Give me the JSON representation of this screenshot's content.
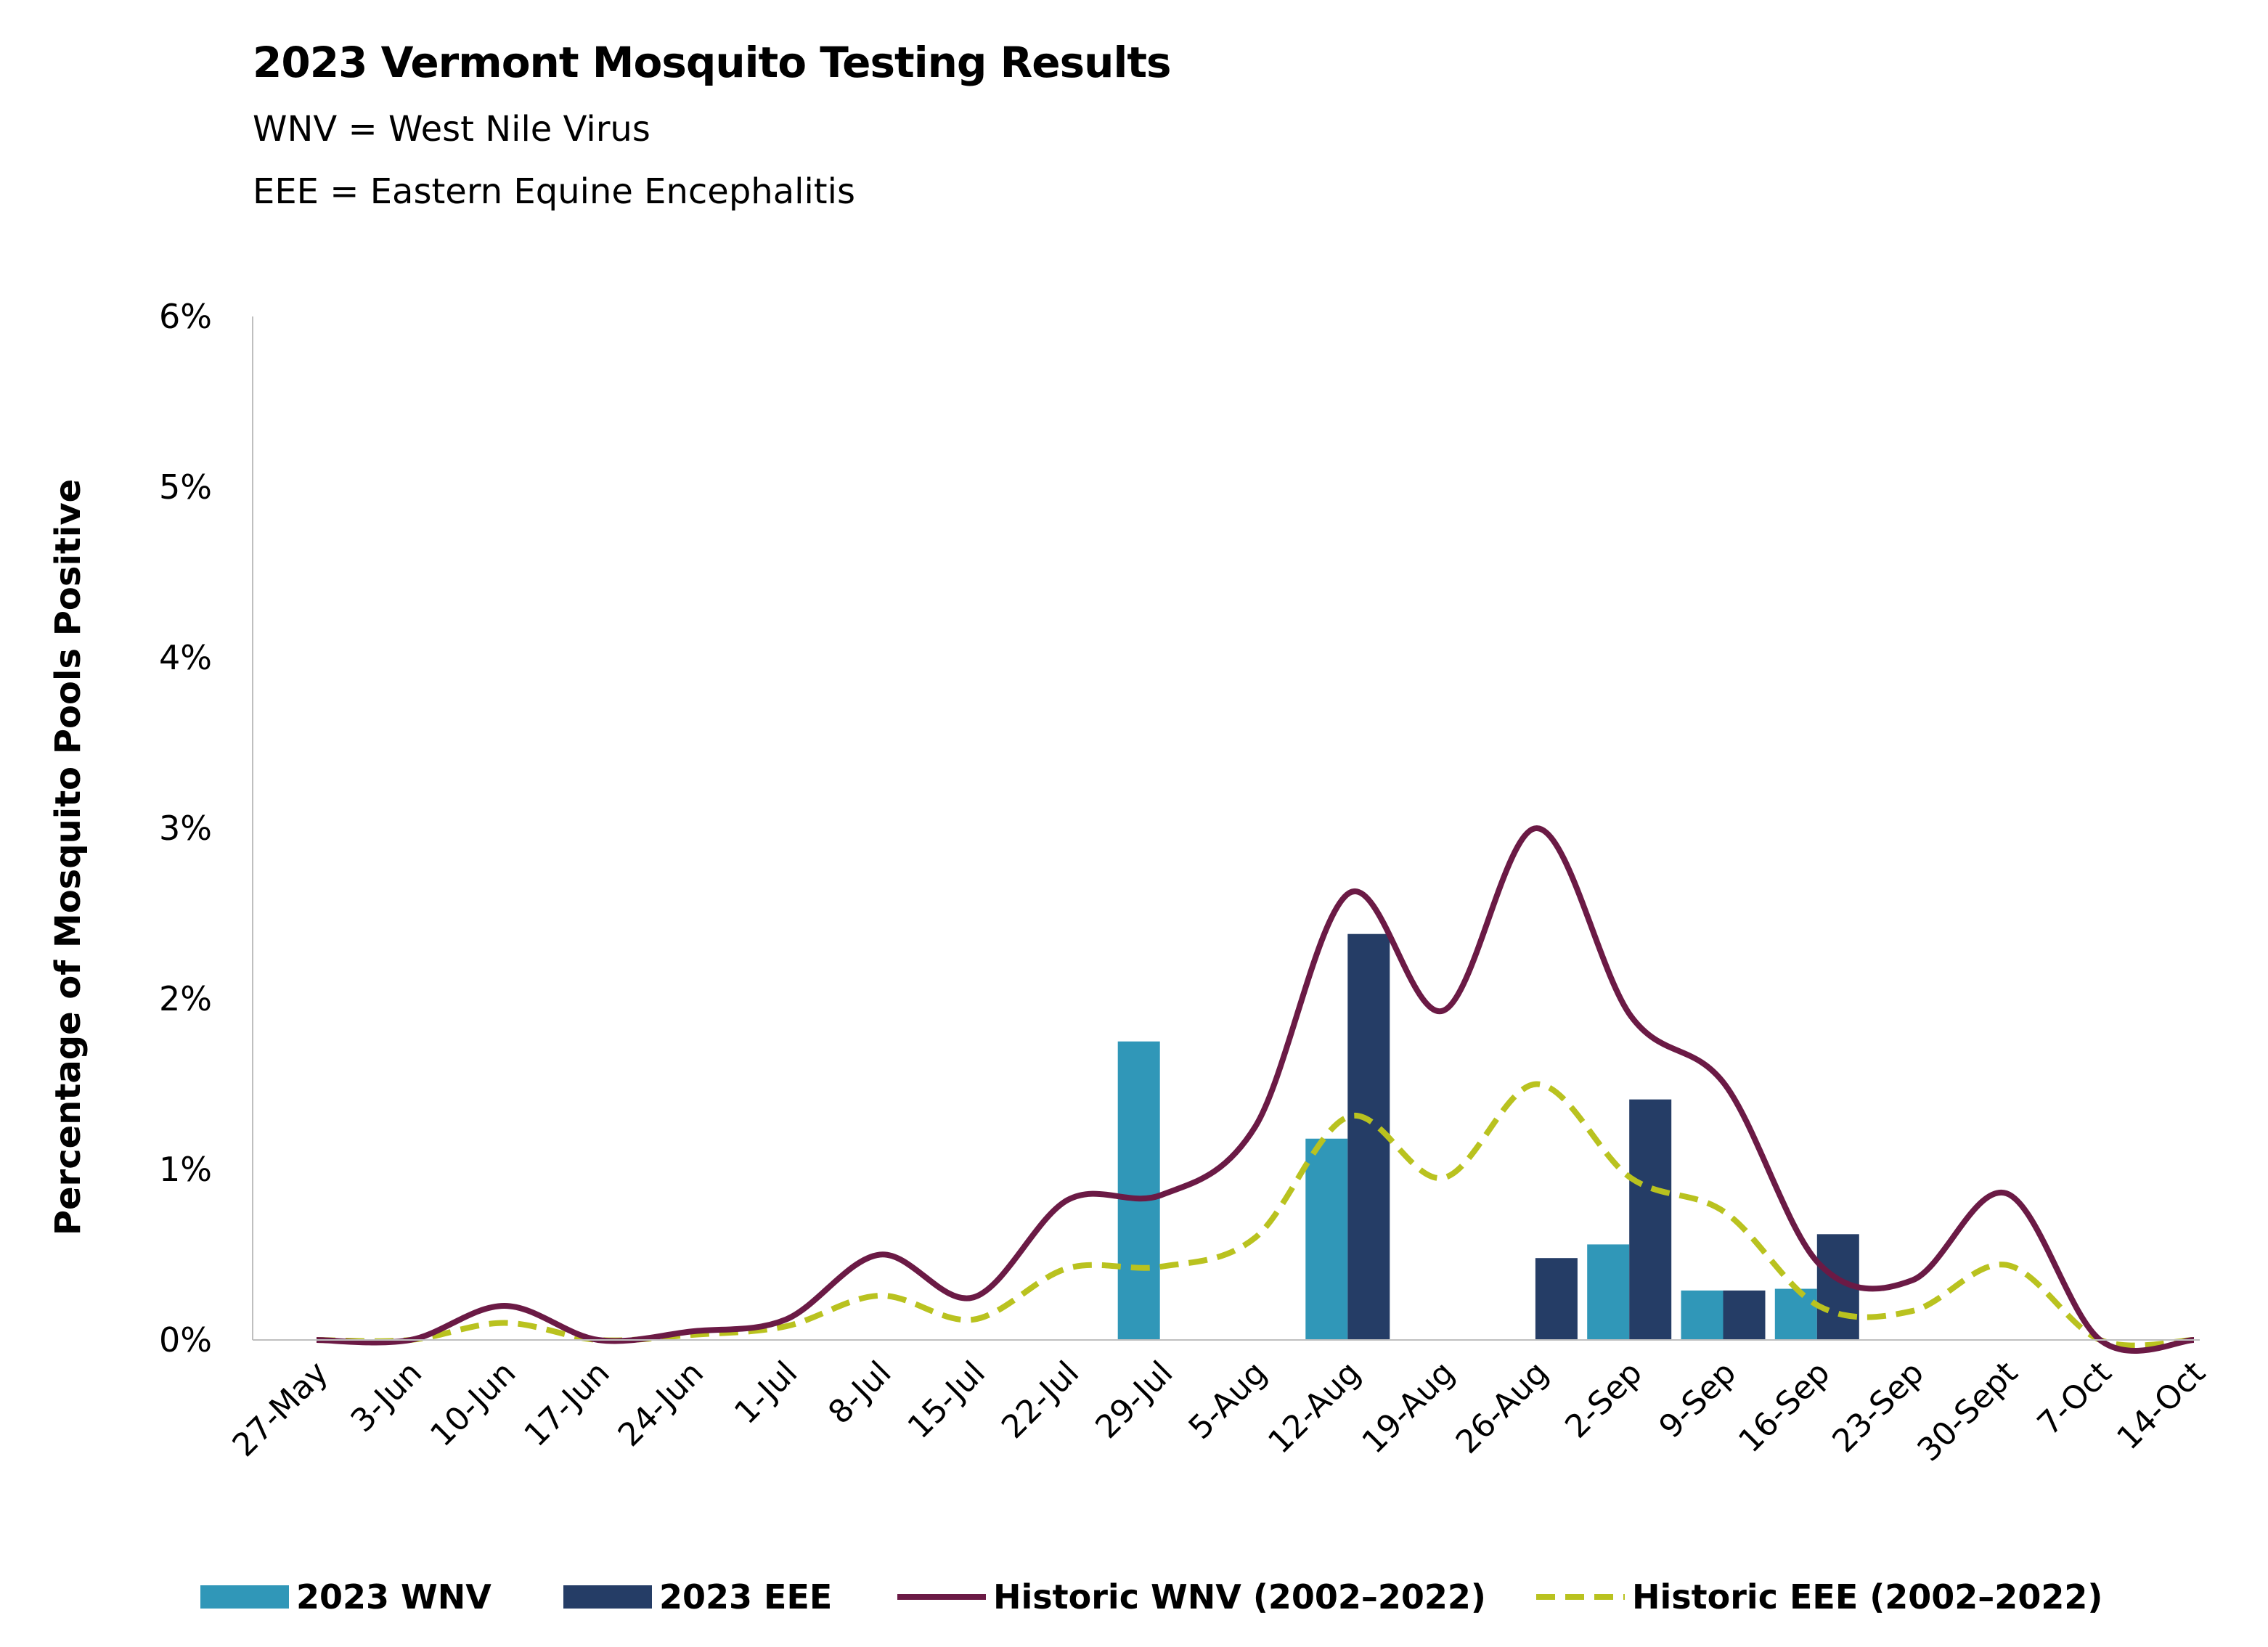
{
  "header": {
    "title": "2023 Vermont Mosquito Testing Results",
    "subtitle_1": "WNV = West Nile Virus",
    "subtitle_2": "EEE = Eastern Equine Encephalitis"
  },
  "colors": {
    "wnv_2023": "#3097b8",
    "eee_2023": "#253d66",
    "historic_wnv": "#6b1a45",
    "historic_eee": "#b9c21f",
    "axis": "#bfbfbf"
  },
  "chart_data": {
    "type": "bar",
    "title": "2023 Vermont Mosquito Testing Results",
    "xlabel": "",
    "ylabel": "Percentage of Mosquito Pools Positive",
    "ylim": [
      0,
      6
    ],
    "y_ticks": [
      "0%",
      "1%",
      "2%",
      "3%",
      "4%",
      "5%",
      "6%"
    ],
    "categories": [
      "27-May",
      "3-Jun",
      "10-Jun",
      "17-Jun",
      "24-Jun",
      "1-Jul",
      "8-Jul",
      "15-Jul",
      "22-Jul",
      "29-Jul",
      "5-Aug",
      "12-Aug",
      "19-Aug",
      "26-Aug",
      "2-Sep",
      "9-Sep",
      "16-Sep",
      "23-Sep",
      "30-Sept",
      "7-Oct",
      "14-Oct"
    ],
    "grid": false,
    "legend_position": "bottom",
    "series": [
      {
        "name": "2023 WNV",
        "kind": "bar",
        "values": [
          null,
          null,
          null,
          null,
          null,
          null,
          null,
          null,
          null,
          1.75,
          null,
          1.18,
          null,
          null,
          0.56,
          0.29,
          0.3,
          null,
          null,
          null,
          null
        ]
      },
      {
        "name": "2023 EEE",
        "kind": "bar",
        "values": [
          null,
          null,
          null,
          null,
          null,
          null,
          null,
          null,
          null,
          null,
          null,
          2.38,
          null,
          0.48,
          1.41,
          0.29,
          0.62,
          null,
          null,
          null,
          null
        ]
      },
      {
        "name": "Historic WNV (2002–2022)",
        "kind": "line",
        "values": [
          0.0,
          0.0,
          0.2,
          0.0,
          0.05,
          0.12,
          0.5,
          0.25,
          0.82,
          0.85,
          1.25,
          2.62,
          1.93,
          3.0,
          1.9,
          1.5,
          0.45,
          0.35,
          0.86,
          0.0,
          0.0
        ]
      },
      {
        "name": "Historic EEE (2002–2022)",
        "kind": "line",
        "values": [
          0.0,
          0.0,
          0.1,
          0.0,
          0.03,
          0.08,
          0.26,
          0.12,
          0.42,
          0.43,
          0.6,
          1.31,
          0.95,
          1.5,
          0.95,
          0.75,
          0.2,
          0.17,
          0.44,
          0.0,
          0.0
        ]
      }
    ]
  }
}
